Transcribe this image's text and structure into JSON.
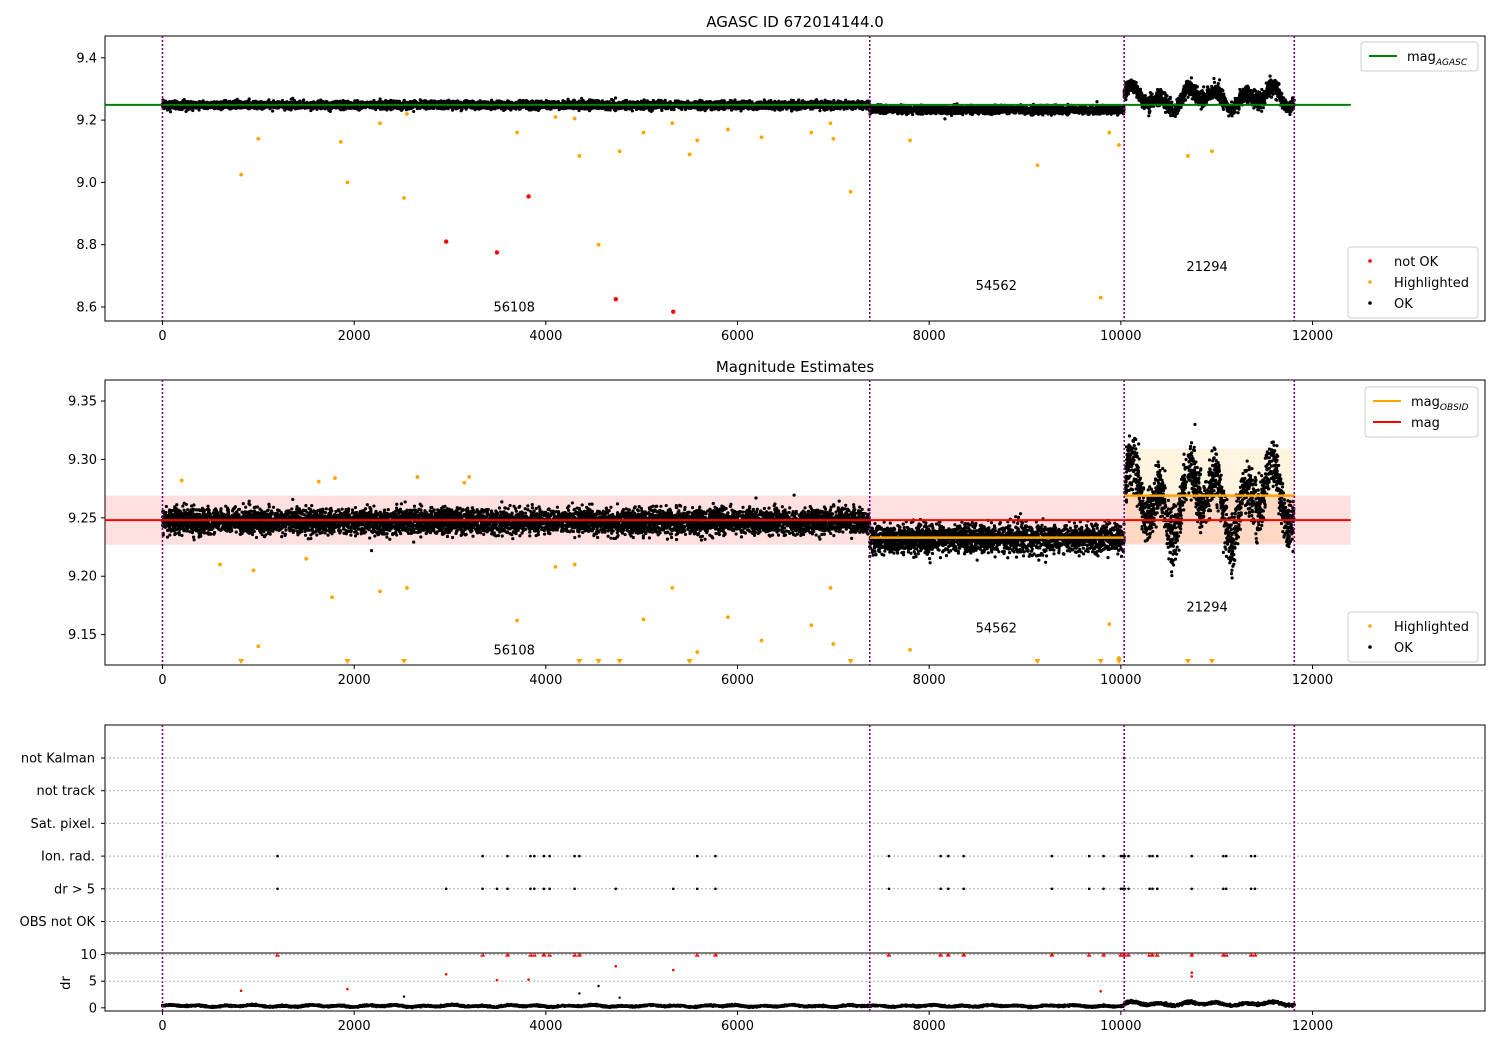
{
  "chart_data": [
    {
      "type": "scatter",
      "title": "AGASC ID 672014144.0",
      "xlabel": "",
      "ylabel": "",
      "xlim": [
        -600,
        13800
      ],
      "ylim": [
        8.555,
        9.47
      ],
      "xticks": [
        0,
        2000,
        4000,
        6000,
        8000,
        10000,
        12000
      ],
      "yticks": [
        8.6,
        8.8,
        9.0,
        9.2,
        9.4
      ],
      "ytick_labels": [
        "8.6",
        "8.8",
        "9.0",
        "9.2",
        "9.4"
      ],
      "grid": false,
      "legend_position": "top-right, bottom-right",
      "observation_boundaries": [
        0,
        7380,
        10035,
        11810
      ],
      "observation_labels": [
        {
          "x": 3670,
          "y": 8.585,
          "text": "56108"
        },
        {
          "x": 8700,
          "y": 8.655,
          "text": "54562"
        },
        {
          "x": 10900,
          "y": 8.715,
          "text": "21294"
        }
      ],
      "lines": [
        {
          "name": "mag",
          "sub": "AGASC",
          "value": 9.249,
          "x": [
            -600,
            12400
          ],
          "color": "#008000"
        }
      ],
      "ok_band_segments": [
        {
          "x": [
            0,
            7380
          ],
          "center": 9.248,
          "spread": 0.011,
          "noise_x": 0
        },
        {
          "x": [
            7380,
            10035
          ],
          "center": 9.233,
          "spread": 0.011,
          "noise_x": 0
        },
        {
          "x": [
            10035,
            11810
          ],
          "center": 9.27,
          "spread": 0.05,
          "noise_x": 0
        }
      ],
      "highlighted_points": [
        [
          820,
          9.025
        ],
        [
          1000,
          9.14
        ],
        [
          1930,
          9.0
        ],
        [
          2520,
          8.95
        ],
        [
          1860,
          9.13
        ],
        [
          2270,
          9.19
        ],
        [
          3700,
          9.16
        ],
        [
          4350,
          9.085
        ],
        [
          4550,
          8.8
        ],
        [
          4770,
          9.1
        ],
        [
          5020,
          9.16
        ],
        [
          5320,
          9.19
        ],
        [
          5500,
          9.09
        ],
        [
          5580,
          9.135
        ],
        [
          6250,
          9.145
        ],
        [
          6770,
          9.16
        ],
        [
          6970,
          9.19
        ],
        [
          7000,
          9.14
        ],
        [
          7180,
          8.97
        ],
        [
          7800,
          9.135
        ],
        [
          9130,
          9.055
        ],
        [
          9790,
          8.63
        ],
        [
          9880,
          9.16
        ],
        [
          9980,
          9.12
        ],
        [
          10700,
          9.085
        ],
        [
          10950,
          9.1
        ],
        [
          4300,
          9.205
        ],
        [
          5900,
          9.17
        ],
        [
          2550,
          9.22
        ],
        [
          4100,
          9.21
        ]
      ],
      "not_ok_points": [
        [
          2960,
          8.81
        ],
        [
          3490,
          8.775
        ],
        [
          3820,
          8.955
        ],
        [
          4730,
          8.625
        ],
        [
          5330,
          8.585
        ]
      ],
      "legend": [
        {
          "label": "mag",
          "sub": "AGASC",
          "color": "#008000"
        },
        {
          "label": "not OK",
          "color": "#ff0000"
        },
        {
          "label": "Highlighted",
          "color": "#ffa500"
        },
        {
          "label": "OK",
          "color": "#000000"
        }
      ]
    },
    {
      "type": "scatter",
      "title": "Magnitude Estimates",
      "xlabel": "",
      "ylabel": "",
      "xlim": [
        -600,
        13800
      ],
      "ylim": [
        9.124,
        9.368
      ],
      "xticks": [
        0,
        2000,
        4000,
        6000,
        8000,
        10000,
        12000
      ],
      "yticks": [
        9.15,
        9.2,
        9.25,
        9.3,
        9.35
      ],
      "ytick_labels": [
        "9.15",
        "9.20",
        "9.25",
        "9.30",
        "9.35"
      ],
      "grid": false,
      "observation_boundaries": [
        0,
        7380,
        10035,
        11810
      ],
      "observation_labels": [
        {
          "x": 3670,
          "y": 9.133,
          "text": "56108"
        },
        {
          "x": 8700,
          "y": 9.152,
          "text": "54562"
        },
        {
          "x": 10900,
          "y": 9.17,
          "text": "21294"
        }
      ],
      "mag_line": {
        "name": "mag",
        "value": 9.248,
        "x": [
          -600,
          12400
        ],
        "band": [
          9.227,
          9.269
        ],
        "color": "#ff0000"
      },
      "obsid_segments": [
        {
          "x": [
            7380,
            10035
          ],
          "value": 9.233
        },
        {
          "x": [
            10035,
            11810
          ],
          "value": 9.269,
          "band": [
            9.228,
            9.309
          ]
        }
      ],
      "ok_band_segments": [
        {
          "x": [
            0,
            7380
          ],
          "center": 9.247,
          "spread": 0.0095
        },
        {
          "x": [
            7380,
            10035
          ],
          "center": 9.232,
          "spread": 0.011
        },
        {
          "x": [
            10035,
            11810
          ],
          "center": 9.265,
          "spread": 0.045
        }
      ],
      "highlighted_points": [
        [
          1000,
          9.14
        ],
        [
          1770,
          9.182
        ],
        [
          2270,
          9.187
        ],
        [
          2550,
          9.19
        ],
        [
          3700,
          9.162
        ],
        [
          4100,
          9.208
        ],
        [
          4300,
          9.21
        ],
        [
          5020,
          9.163
        ],
        [
          5320,
          9.19
        ],
        [
          5580,
          9.135
        ],
        [
          5900,
          9.165
        ],
        [
          6250,
          9.145
        ],
        [
          6770,
          9.158
        ],
        [
          6970,
          9.19
        ],
        [
          7000,
          9.142
        ],
        [
          7800,
          9.137
        ],
        [
          9880,
          9.159
        ],
        [
          9980,
          9.13
        ],
        [
          600,
          9.21
        ],
        [
          950,
          9.205
        ],
        [
          1500,
          9.215
        ],
        [
          3200,
          9.285
        ],
        [
          3150,
          9.28
        ],
        [
          2660,
          9.285
        ],
        [
          1800,
          9.284
        ],
        [
          200,
          9.282
        ],
        [
          1630,
          9.281
        ]
      ],
      "clipped_highlighted_x": [
        820,
        1930,
        2520,
        4350,
        4550,
        4770,
        5500,
        7180,
        9130,
        9790,
        9980,
        10700,
        10950
      ],
      "legend": [
        {
          "label": "mag",
          "sub": "OBSID",
          "color": "#ffa500"
        },
        {
          "label": "mag",
          "color": "#ff0000"
        },
        {
          "label": "Highlighted",
          "color": "#ffa500"
        },
        {
          "label": "OK",
          "color": "#000000"
        }
      ]
    },
    {
      "type": "scatter",
      "title": "",
      "xlabel": "",
      "ylabel": "",
      "xlim": [
        -600,
        13800
      ],
      "category_axis": [
        "not Kalman",
        "not track",
        "Sat. pixel.",
        "Ion. rad.",
        "dr > 5",
        "OBS not OK"
      ],
      "observation_boundaries": [
        0,
        7380,
        10035,
        11810
      ],
      "flags": {
        "not Kalman": [
          10035
        ],
        "Ion. rad.": [
          1200,
          3340,
          3600,
          3840,
          3880,
          3980,
          4040,
          4300,
          4350,
          5580,
          5770,
          7580,
          8120,
          8200,
          8360,
          9280,
          9670,
          9820,
          10000,
          10020,
          10040,
          10080,
          10300,
          10330,
          10380,
          10740,
          11070,
          11100,
          11360,
          11400
        ],
        "dr > 5": [
          1200,
          2960,
          3340,
          3490,
          3600,
          3840,
          3880,
          3980,
          4040,
          4300,
          4730,
          5330,
          5580,
          5770,
          7580,
          8120,
          8200,
          8360,
          9280,
          9670,
          9820,
          10000,
          10020,
          10040,
          10080,
          10300,
          10330,
          10380,
          10740,
          11070,
          11100,
          11360,
          11400
        ]
      },
      "grid": true
    },
    {
      "type": "scatter",
      "title": "",
      "xlabel": "",
      "ylabel": "dr",
      "xlim": [
        -600,
        13800
      ],
      "ylim": [
        -0.6,
        10.3
      ],
      "xticks": [
        0,
        2000,
        4000,
        6000,
        8000,
        10000,
        12000
      ],
      "yticks": [
        0,
        5,
        10
      ],
      "observation_boundaries": [
        0,
        7380,
        10035,
        11810
      ],
      "capped_points": [
        1200,
        3340,
        3600,
        3840,
        3880,
        3980,
        4040,
        4300,
        4350,
        5580,
        5770,
        7580,
        8120,
        8200,
        8360,
        9280,
        9670,
        9820,
        10000,
        10020,
        10040,
        10080,
        10300,
        10330,
        10380,
        10740,
        11070,
        11100,
        11360,
        11400
      ],
      "red_points": [
        [
          820,
          3.2
        ],
        [
          1930,
          3.5
        ],
        [
          2960,
          6.3
        ],
        [
          3490,
          5.2
        ],
        [
          3820,
          5.3
        ],
        [
          4730,
          7.8
        ],
        [
          5330,
          7.1
        ],
        [
          9790,
          3.1
        ],
        [
          10740,
          6.6
        ],
        [
          10740,
          5.9
        ]
      ],
      "black_points": [
        [
          2520,
          2.1
        ],
        [
          4350,
          2.7
        ],
        [
          4550,
          4.1
        ],
        [
          4770,
          1.9
        ]
      ],
      "ok_band_segments": [
        {
          "x": [
            0,
            10035
          ],
          "center": 0.35,
          "spread": 0.25
        },
        {
          "x": [
            10035,
            11810
          ],
          "center": 0.75,
          "spread": 0.45
        }
      ]
    }
  ]
}
